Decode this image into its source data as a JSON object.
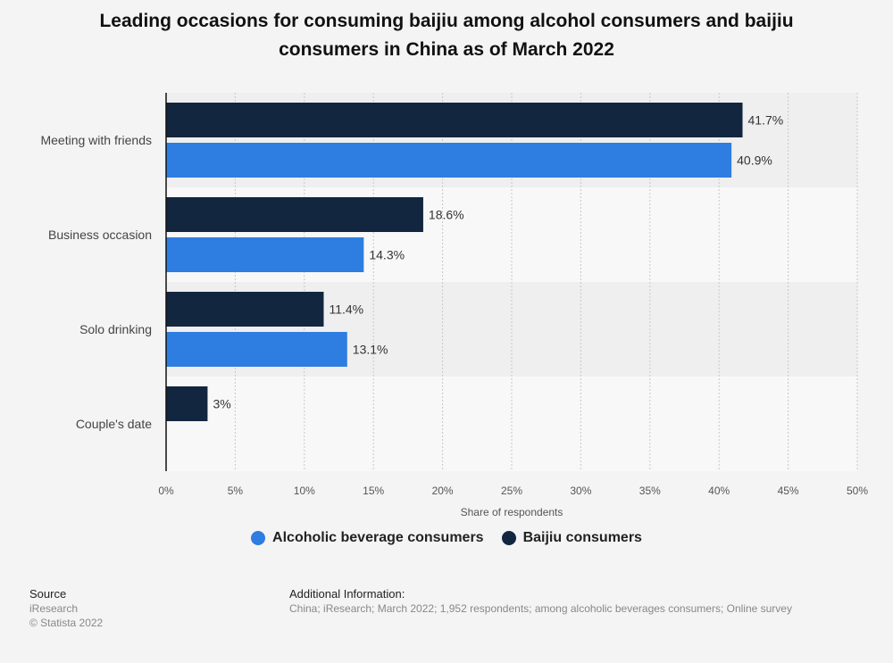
{
  "title_lines": [
    "Leading occasions for consuming baijiu among alcohol consumers and baijiu",
    "consumers in China as of March 2022"
  ],
  "chart_data": {
    "type": "bar",
    "orientation": "horizontal",
    "categories": [
      "Meeting with friends",
      "Business occasion",
      "Solo drinking",
      "Couple's date"
    ],
    "series": [
      {
        "name": "Baijiu consumers",
        "color": "#12263f",
        "values": [
          41.7,
          18.6,
          11.4,
          3
        ],
        "labels": [
          "41.7%",
          "18.6%",
          "11.4%",
          "3%"
        ]
      },
      {
        "name": "Alcoholic beverage consumers",
        "color": "#2e7de1",
        "values": [
          40.9,
          14.3,
          13.1,
          null
        ],
        "labels": [
          "40.9%",
          "14.3%",
          "13.1%",
          ""
        ]
      }
    ],
    "xlabel": "Share of respondents",
    "xlim": [
      0,
      50
    ],
    "x_ticks": [
      "0%",
      "5%",
      "10%",
      "15%",
      "20%",
      "25%",
      "30%",
      "35%",
      "40%",
      "45%",
      "50%"
    ],
    "grid": true
  },
  "legend": [
    {
      "label": "Alcoholic beverage consumers",
      "color": "#2e7de1"
    },
    {
      "label": "Baijiu consumers",
      "color": "#12263f"
    }
  ],
  "footer": {
    "source_heading": "Source",
    "source_name": "iResearch",
    "copyright": "© Statista 2022",
    "info_heading": "Additional Information:",
    "info_text": "China; iResearch; March 2022; 1,952 respondents; among alcoholic beverages consumers; Online survey"
  }
}
